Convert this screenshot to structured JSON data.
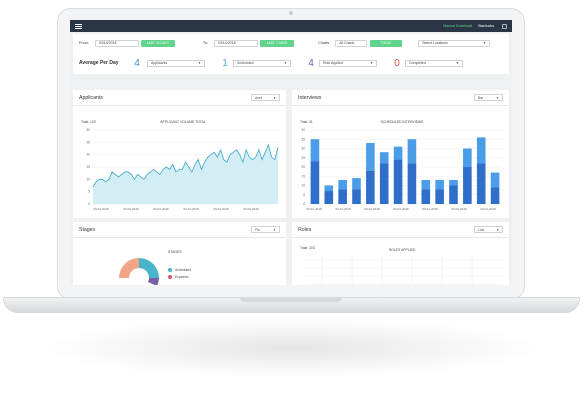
{
  "topbar": {
    "menu_icon": "hamburger-icon",
    "manual_download": "Manual Download",
    "user": "Starbucks",
    "exit_icon": "exit-icon"
  },
  "filters": {
    "from_label": "From:",
    "from_value": "03/14/2018",
    "last30_label": "LAST 30 DAYS",
    "to_label": "To:",
    "to_value": "03/14/2018",
    "last7_label": "LAST 7 DAYS",
    "charts_label": "Charts",
    "charts_value": "All Charts",
    "today_label": "TODAY",
    "locations_value": "Select Locations"
  },
  "average": {
    "title": "Average Per Day",
    "items": [
      {
        "value": "4",
        "label": "Applicants",
        "color": "#3f8fcf"
      },
      {
        "value": "1",
        "label": "Scheduled",
        "color": "#4aa7c6"
      },
      {
        "value": "4",
        "label": "Role Applied",
        "color": "#7a5ea8"
      },
      {
        "value": "0",
        "label": "Completed",
        "color": "#d9534f"
      }
    ]
  },
  "applicants_panel": {
    "title": "Applicants",
    "dropdown": "Area",
    "total": "Total: 103",
    "chart_title": "APPLICANT VOLUME TOTAL"
  },
  "interviews_panel": {
    "title": "Interviews",
    "dropdown": "Bar",
    "total": "Total: 31",
    "chart_title": "SCHEDULED INTERVIEWS"
  },
  "stages_panel": {
    "title": "Stages",
    "dropdown": "Pie",
    "chart_title": "STAGES",
    "legend": [
      {
        "label": "Scheduled",
        "color": "#4ab5c8"
      },
      {
        "label": "Explored",
        "color": "#e0526d"
      }
    ]
  },
  "roles_panel": {
    "title": "Roles",
    "dropdown": "Line",
    "total": "Total: 103",
    "chart_title": "ROLES APPLIED"
  },
  "chart_data": [
    {
      "type": "area",
      "title": "APPLICANT VOLUME TOTAL",
      "y_ticks": [
        "30",
        "25",
        "20",
        "15",
        "10",
        "5",
        "0"
      ],
      "ylim": [
        0,
        30
      ],
      "x_tick_labels": [
        "03-01-2018",
        "03-01-2018",
        "03-01-2018",
        "03-01-2018",
        "03-01-2018",
        "03-01-2018"
      ],
      "values": [
        7,
        9,
        10,
        10,
        9,
        10,
        13,
        12,
        11,
        12,
        13,
        13,
        12,
        10,
        12,
        11,
        10,
        12,
        13,
        14,
        13,
        12,
        14,
        15,
        14,
        16,
        13,
        14,
        14,
        17,
        15,
        13,
        16,
        18,
        14,
        17,
        19,
        20,
        21,
        19,
        22,
        18,
        17,
        20,
        21,
        22,
        20,
        17,
        22,
        19,
        18,
        19,
        22,
        18,
        21,
        24,
        19,
        18,
        23
      ]
    },
    {
      "type": "bar",
      "title": "SCHEDULED INTERVIEWS",
      "y_ticks": [
        "40",
        "35",
        "30",
        "25",
        "20",
        "15",
        "10",
        "5",
        "0"
      ],
      "ylim": [
        0,
        40
      ],
      "x_tick_labels": [
        "03-01-2018",
        "03-01-2018",
        "03-01-2018",
        "03-01-2018",
        "03-01-2018",
        "03-01-2018",
        "03-01-2018"
      ],
      "series": [
        {
          "values": [
            23,
            7,
            8,
            8,
            18,
            22,
            24,
            22,
            8,
            8,
            10,
            20,
            22,
            9
          ]
        },
        {
          "values": [
            35,
            10,
            13,
            14,
            33,
            28,
            31,
            35,
            13,
            13,
            13,
            30,
            36,
            17
          ]
        }
      ],
      "colors": [
        "#2f6fc9",
        "#4a9de6"
      ]
    }
  ]
}
